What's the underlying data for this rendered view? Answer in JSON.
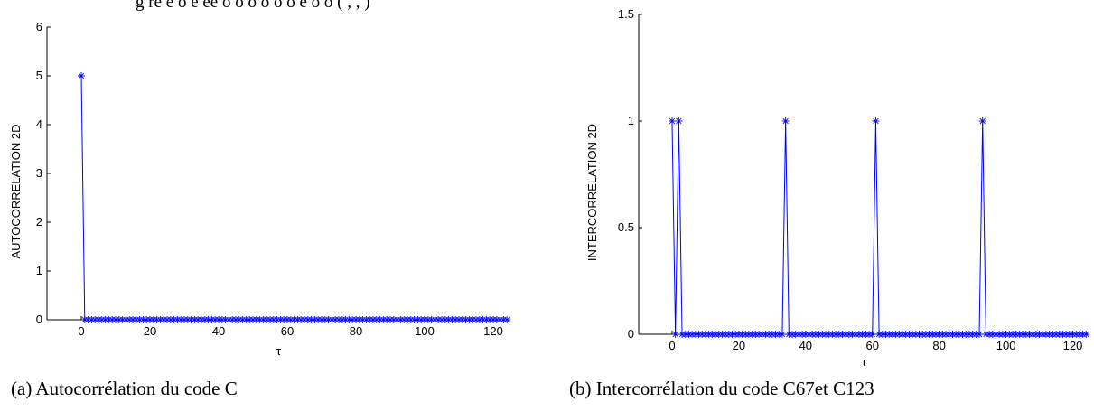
{
  "header_fragment": "g  ré e  o  é   éé   o  o  o  o o  o   é  o  o   ( , , )",
  "captions": {
    "left": "(a)  Autocorrélation du code C",
    "right": "(b) Intercorrélation du code C67et C123"
  },
  "chart_data": [
    {
      "type": "line",
      "marker": "star",
      "color": "#0000ff",
      "ylabel": "AUTOCORRELATION 2D",
      "xlabel": "τ",
      "xlim": [
        -10,
        125
      ],
      "ylim": [
        0,
        6
      ],
      "xticks": [
        0,
        20,
        40,
        60,
        80,
        100,
        120
      ],
      "yticks": [
        0,
        1,
        2,
        3,
        4,
        5,
        6
      ],
      "x_range": [
        0,
        124
      ],
      "peaks": [
        {
          "x": 0,
          "y": 5
        }
      ],
      "baseline": 0
    },
    {
      "type": "line",
      "marker": "star",
      "color": "#0000ff",
      "ylabel": "INTERCORRELATION 2D",
      "xlabel": "τ",
      "xlim": [
        -10,
        125
      ],
      "ylim": [
        0,
        1.5
      ],
      "xticks": [
        0,
        20,
        40,
        60,
        80,
        100,
        120
      ],
      "yticks": [
        0,
        0.5,
        1,
        1.5
      ],
      "x_range": [
        0,
        124
      ],
      "peaks": [
        {
          "x": 0,
          "y": 1
        },
        {
          "x": 2,
          "y": 1
        },
        {
          "x": 34,
          "y": 1
        },
        {
          "x": 61,
          "y": 1
        },
        {
          "x": 93,
          "y": 1
        }
      ],
      "baseline": 0
    }
  ]
}
